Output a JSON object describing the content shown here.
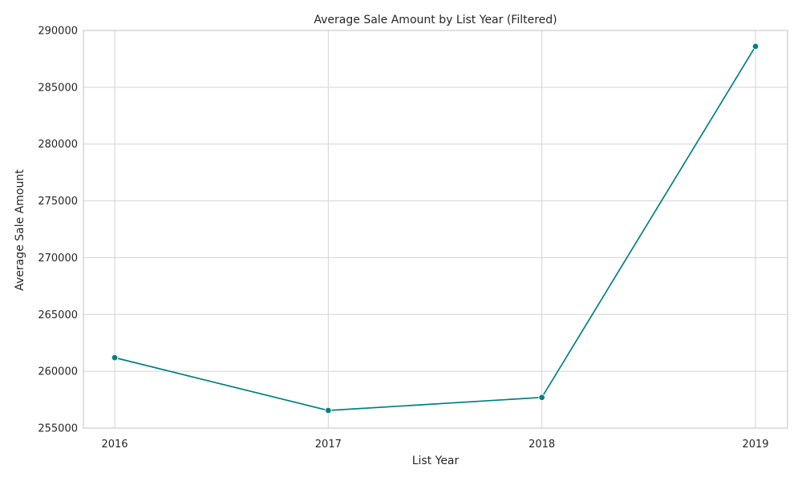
{
  "chart_data": {
    "type": "line",
    "title": "Average Sale Amount by List Year (Filtered)",
    "xlabel": "List Year",
    "ylabel": "Average Sale Amount",
    "categories": [
      "2016",
      "2017",
      "2018",
      "2019"
    ],
    "series": [
      {
        "values": [
          261200,
          256550,
          257700,
          288600
        ]
      }
    ],
    "ylim": [
      255000,
      290000
    ],
    "yticks": [
      255000,
      260000,
      265000,
      270000,
      275000,
      280000,
      285000,
      290000
    ],
    "yticks_labels": [
      "255000",
      "260000",
      "265000",
      "270000",
      "275000",
      "280000",
      "285000",
      "290000"
    ],
    "grid": true,
    "line_color": "#008080",
    "marker": "circle"
  }
}
